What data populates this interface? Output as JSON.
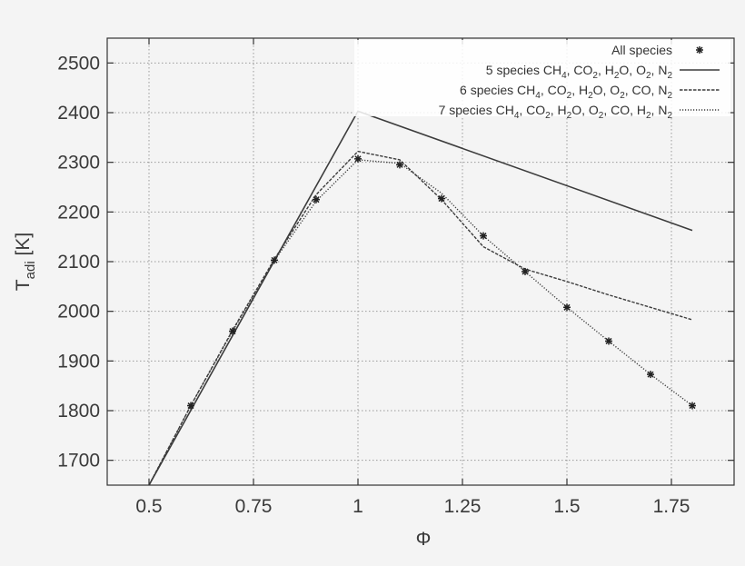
{
  "chart_data": {
    "type": "line",
    "xlabel": "Φ",
    "ylabel_main": "T",
    "ylabel_sub": "adi",
    "ylabel_unit": " [K]",
    "xlim": [
      0.4,
      1.9
    ],
    "ylim": [
      1650,
      2550
    ],
    "xticks": [
      0.5,
      0.75,
      1,
      1.25,
      1.5,
      1.75
    ],
    "xtick_labels": [
      "0.5",
      "0.75",
      "1",
      "1.25",
      "1.5",
      "1.75"
    ],
    "yticks": [
      1700,
      1800,
      1900,
      2000,
      2100,
      2200,
      2300,
      2400,
      2500
    ],
    "ytick_labels": [
      "1700",
      "1800",
      "1900",
      "2000",
      "2100",
      "2200",
      "2300",
      "2400",
      "2500"
    ],
    "grid": true,
    "legend_position": "top-right",
    "series": [
      {
        "name": "All species",
        "style": "markers",
        "x": [
          0.6,
          0.7,
          0.8,
          0.9,
          1.0,
          1.1,
          1.2,
          1.3,
          1.4,
          1.5,
          1.6,
          1.7,
          1.8
        ],
        "y": [
          1810,
          1960,
          2103,
          2225,
          2307,
          2295,
          2227,
          2152,
          2080,
          2008,
          1940,
          1873,
          1810
        ]
      },
      {
        "name_parts": [
          {
            "t": "5 species CH"
          },
          {
            "t": "4",
            "sub": true
          },
          {
            "t": ", CO"
          },
          {
            "t": "2",
            "sub": true
          },
          {
            "t": ", H"
          },
          {
            "t": "2",
            "sub": true
          },
          {
            "t": "O, O"
          },
          {
            "t": "2",
            "sub": true
          },
          {
            "t": ", N"
          },
          {
            "t": "2",
            "sub": true
          }
        ],
        "style": "solid",
        "x": [
          0.5,
          1.0,
          1.8
        ],
        "y": [
          1650,
          2403,
          2163
        ]
      },
      {
        "name_parts": [
          {
            "t": "6 species CH"
          },
          {
            "t": "4",
            "sub": true
          },
          {
            "t": ", CO"
          },
          {
            "t": "2",
            "sub": true
          },
          {
            "t": ", H"
          },
          {
            "t": "2",
            "sub": true
          },
          {
            "t": "O, O"
          },
          {
            "t": "2",
            "sub": true
          },
          {
            "t": ", CO, N"
          },
          {
            "t": "2",
            "sub": true
          }
        ],
        "style": "dashed",
        "x": [
          0.5,
          0.6,
          0.7,
          0.8,
          0.9,
          1.0,
          1.1,
          1.2,
          1.3,
          1.4,
          1.5,
          1.6,
          1.7,
          1.8
        ],
        "y": [
          1650,
          1810,
          1962,
          2105,
          2235,
          2322,
          2305,
          2225,
          2130,
          2085,
          2060,
          2033,
          2008,
          1983
        ]
      },
      {
        "name_parts": [
          {
            "t": "7 species CH"
          },
          {
            "t": "4",
            "sub": true
          },
          {
            "t": ", CO"
          },
          {
            "t": "2",
            "sub": true
          },
          {
            "t": ", H"
          },
          {
            "t": "2",
            "sub": true
          },
          {
            "t": "O, O"
          },
          {
            "t": "2",
            "sub": true
          },
          {
            "t": ", CO, H"
          },
          {
            "t": "2",
            "sub": true
          },
          {
            "t": ", N"
          },
          {
            "t": "2",
            "sub": true
          }
        ],
        "style": "dotted",
        "x": [
          0.5,
          0.6,
          0.7,
          0.8,
          0.9,
          1.0,
          1.1,
          1.2,
          1.3,
          1.4,
          1.5,
          1.6,
          1.7,
          1.8
        ],
        "y": [
          1650,
          1810,
          1960,
          2102,
          2222,
          2305,
          2298,
          2238,
          2152,
          2080,
          2008,
          1940,
          1873,
          1810
        ]
      }
    ]
  },
  "colors": {
    "line": "#3c3c3c",
    "axis": "#333333",
    "grid": "#9a9a9a",
    "background": "#f4f4f4",
    "legend_bg": "#ffffff"
  }
}
